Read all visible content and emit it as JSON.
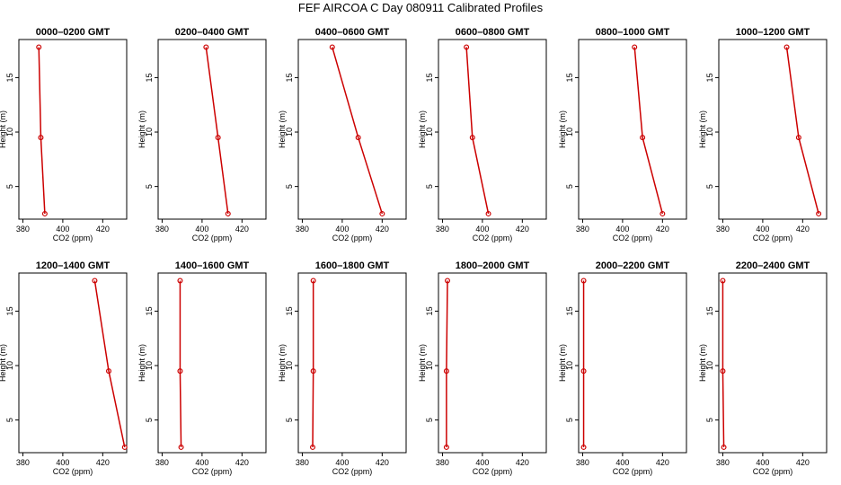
{
  "title": "FEF AIRCOA C  Day 080911  Calibrated Profiles",
  "colors": {
    "series": "#cc0000",
    "axis": "#000000"
  },
  "chart_data": [
    {
      "type": "line",
      "title": "0000–0200 GMT",
      "xlabel": "CO2 (ppm)",
      "ylabel": "Height (m)",
      "xlim": [
        378,
        432
      ],
      "ylim": [
        2,
        18.5
      ],
      "xticks": [
        380,
        400,
        420
      ],
      "yticks": [
        5,
        10,
        15
      ],
      "grid": false,
      "x": [
        388,
        389,
        391
      ],
      "y": [
        17.8,
        9.5,
        2.5
      ]
    },
    {
      "type": "line",
      "title": "0200–0400 GMT",
      "xlabel": "CO2 (ppm)",
      "ylabel": "Height (m)",
      "xlim": [
        378,
        432
      ],
      "ylim": [
        2,
        18.5
      ],
      "xticks": [
        380,
        400,
        420
      ],
      "yticks": [
        5,
        10,
        15
      ],
      "grid": false,
      "x": [
        402,
        408,
        413
      ],
      "y": [
        17.8,
        9.5,
        2.5
      ]
    },
    {
      "type": "line",
      "title": "0400–0600 GMT",
      "xlabel": "CO2 (ppm)",
      "ylabel": "Height (m)",
      "xlim": [
        378,
        432
      ],
      "ylim": [
        2,
        18.5
      ],
      "xticks": [
        380,
        400,
        420
      ],
      "yticks": [
        5,
        10,
        15
      ],
      "grid": false,
      "x": [
        395,
        408,
        420
      ],
      "y": [
        17.8,
        9.5,
        2.5
      ]
    },
    {
      "type": "line",
      "title": "0600–0800 GMT",
      "xlabel": "CO2 (ppm)",
      "ylabel": "Height (m)",
      "xlim": [
        378,
        432
      ],
      "ylim": [
        2,
        18.5
      ],
      "xticks": [
        380,
        400,
        420
      ],
      "yticks": [
        5,
        10,
        15
      ],
      "grid": false,
      "x": [
        392,
        395,
        403
      ],
      "y": [
        17.8,
        9.5,
        2.5
      ]
    },
    {
      "type": "line",
      "title": "0800–1000 GMT",
      "xlabel": "CO2 (ppm)",
      "ylabel": "Height (m)",
      "xlim": [
        378,
        432
      ],
      "ylim": [
        2,
        18.5
      ],
      "xticks": [
        380,
        400,
        420
      ],
      "yticks": [
        5,
        10,
        15
      ],
      "grid": false,
      "x": [
        406,
        410,
        420
      ],
      "y": [
        17.8,
        9.5,
        2.5
      ]
    },
    {
      "type": "line",
      "title": "1000–1200 GMT",
      "xlabel": "CO2 (ppm)",
      "ylabel": "Height (m)",
      "xlim": [
        378,
        432
      ],
      "ylim": [
        2,
        18.5
      ],
      "xticks": [
        380,
        400,
        420
      ],
      "yticks": [
        5,
        10,
        15
      ],
      "grid": false,
      "x": [
        412,
        418,
        428
      ],
      "y": [
        17.8,
        9.5,
        2.5
      ]
    },
    {
      "type": "line",
      "title": "1200–1400 GMT",
      "xlabel": "CO2 (ppm)",
      "ylabel": "Height (m)",
      "xlim": [
        378,
        432
      ],
      "ylim": [
        2,
        18.5
      ],
      "xticks": [
        380,
        400,
        420
      ],
      "yticks": [
        5,
        10,
        15
      ],
      "grid": false,
      "x": [
        416,
        423,
        431
      ],
      "y": [
        17.8,
        9.5,
        2.5
      ]
    },
    {
      "type": "line",
      "title": "1400–1600 GMT",
      "xlabel": "CO2 (ppm)",
      "ylabel": "Height (m)",
      "xlim": [
        378,
        432
      ],
      "ylim": [
        2,
        18.5
      ],
      "xticks": [
        380,
        400,
        420
      ],
      "yticks": [
        5,
        10,
        15
      ],
      "grid": false,
      "x": [
        389,
        389,
        389.5
      ],
      "y": [
        17.8,
        9.5,
        2.5
      ]
    },
    {
      "type": "line",
      "title": "1600–1800 GMT",
      "xlabel": "CO2 (ppm)",
      "ylabel": "Height (m)",
      "xlim": [
        378,
        432
      ],
      "ylim": [
        2,
        18.5
      ],
      "xticks": [
        380,
        400,
        420
      ],
      "yticks": [
        5,
        10,
        15
      ],
      "grid": false,
      "x": [
        385.5,
        385.5,
        385.2
      ],
      "y": [
        17.8,
        9.5,
        2.5
      ]
    },
    {
      "type": "line",
      "title": "1800–2000 GMT",
      "xlabel": "CO2 (ppm)",
      "ylabel": "Height (m)",
      "xlim": [
        378,
        432
      ],
      "ylim": [
        2,
        18.5
      ],
      "xticks": [
        380,
        400,
        420
      ],
      "yticks": [
        5,
        10,
        15
      ],
      "grid": false,
      "x": [
        382.5,
        382,
        382
      ],
      "y": [
        17.8,
        9.5,
        2.5
      ]
    },
    {
      "type": "line",
      "title": "2000–2200 GMT",
      "xlabel": "CO2 (ppm)",
      "ylabel": "Height (m)",
      "xlim": [
        378,
        432
      ],
      "ylim": [
        2,
        18.5
      ],
      "xticks": [
        380,
        400,
        420
      ],
      "yticks": [
        5,
        10,
        15
      ],
      "grid": false,
      "x": [
        380.5,
        380.5,
        380.5
      ],
      "y": [
        17.8,
        9.5,
        2.5
      ]
    },
    {
      "type": "line",
      "title": "2200–2400 GMT",
      "xlabel": "CO2 (ppm)",
      "ylabel": "Height (m)",
      "xlim": [
        378,
        432
      ],
      "ylim": [
        2,
        18.5
      ],
      "xticks": [
        380,
        400,
        420
      ],
      "yticks": [
        5,
        10,
        15
      ],
      "grid": false,
      "x": [
        380,
        380,
        380.5
      ],
      "y": [
        17.8,
        9.5,
        2.5
      ]
    }
  ]
}
